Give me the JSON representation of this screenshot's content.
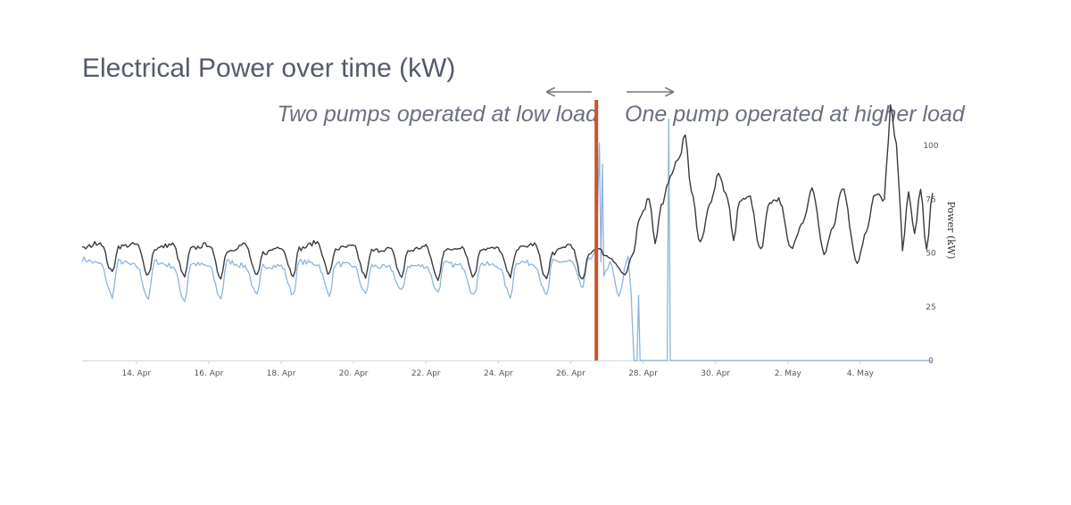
{
  "chart_data": {
    "type": "line",
    "title": "Electrical Power over time (kW)",
    "ylabel": "Power (kW)",
    "xlabel": "",
    "ylim": [
      0,
      120
    ],
    "y_ticks": [
      0,
      25,
      50,
      75,
      100
    ],
    "x_ticks": [
      "14. Apr",
      "16. Apr",
      "18. Apr",
      "20. Apr",
      "22. Apr",
      "24. Apr",
      "26. Apr",
      "28. Apr",
      "30. Apr",
      "2. May",
      "4. May"
    ],
    "x_start": "2024-04-12T12:00",
    "x_end": "2024-05-06T00:00",
    "grid": false,
    "legend": "none",
    "colors": {
      "total": "#3a3a40",
      "pump": "#8db4dd",
      "divider": "#c7552f",
      "axis": "#c9d7e6"
    },
    "annotations": {
      "left": "Two pumps operated at low load",
      "right": "One pump operated at higher load",
      "divider_date": "2024-04-26T17:00"
    },
    "series": [
      {
        "color": "#3a3a40",
        "points": [
          [
            "2024-04-12T12:00",
            52
          ],
          [
            "2024-04-13T00:00",
            55
          ],
          [
            "2024-04-13T08:00",
            41
          ],
          [
            "2024-04-13T12:00",
            53
          ],
          [
            "2024-04-14T00:00",
            54
          ],
          [
            "2024-04-14T08:00",
            40
          ],
          [
            "2024-04-14T12:00",
            52
          ],
          [
            "2024-04-15T00:00",
            54
          ],
          [
            "2024-04-15T08:00",
            39
          ],
          [
            "2024-04-15T12:00",
            52
          ],
          [
            "2024-04-16T00:00",
            54
          ],
          [
            "2024-04-16T08:00",
            39
          ],
          [
            "2024-04-16T12:00",
            51
          ],
          [
            "2024-04-17T00:00",
            54
          ],
          [
            "2024-04-17T08:00",
            39
          ],
          [
            "2024-04-17T12:00",
            50
          ],
          [
            "2024-04-18T00:00",
            53
          ],
          [
            "2024-04-18T08:00",
            40
          ],
          [
            "2024-04-18T12:00",
            52
          ],
          [
            "2024-04-19T00:00",
            55
          ],
          [
            "2024-04-19T08:00",
            40
          ],
          [
            "2024-04-19T12:00",
            52
          ],
          [
            "2024-04-20T00:00",
            53
          ],
          [
            "2024-04-20T08:00",
            39
          ],
          [
            "2024-04-20T12:00",
            51
          ],
          [
            "2024-04-21T00:00",
            52
          ],
          [
            "2024-04-21T08:00",
            39
          ],
          [
            "2024-04-21T12:00",
            51
          ],
          [
            "2024-04-22T00:00",
            53
          ],
          [
            "2024-04-22T08:00",
            38
          ],
          [
            "2024-04-22T12:00",
            51
          ],
          [
            "2024-04-23T00:00",
            53
          ],
          [
            "2024-04-23T08:00",
            39
          ],
          [
            "2024-04-23T12:00",
            52
          ],
          [
            "2024-04-24T00:00",
            52
          ],
          [
            "2024-04-24T08:00",
            39
          ],
          [
            "2024-04-24T12:00",
            52
          ],
          [
            "2024-04-25T00:00",
            54
          ],
          [
            "2024-04-25T08:00",
            38
          ],
          [
            "2024-04-25T12:00",
            50
          ],
          [
            "2024-04-26T00:00",
            54
          ],
          [
            "2024-04-26T08:00",
            37
          ],
          [
            "2024-04-26T12:00",
            50
          ],
          [
            "2024-04-26T17:00",
            52
          ],
          [
            "2024-04-27T02:00",
            48
          ],
          [
            "2024-04-27T12:00",
            40
          ],
          [
            "2024-04-27T18:00",
            50
          ],
          [
            "2024-04-27T21:00",
            65
          ],
          [
            "2024-04-28T00:00",
            70
          ],
          [
            "2024-04-28T04:00",
            76
          ],
          [
            "2024-04-28T08:00",
            55
          ],
          [
            "2024-04-28T12:00",
            72
          ],
          [
            "2024-04-28T18:00",
            85
          ],
          [
            "2024-04-29T00:00",
            95
          ],
          [
            "2024-04-29T04:00",
            105
          ],
          [
            "2024-04-29T08:00",
            78
          ],
          [
            "2024-04-29T14:00",
            55
          ],
          [
            "2024-04-29T20:00",
            72
          ],
          [
            "2024-04-30T02:00",
            86
          ],
          [
            "2024-04-30T08:00",
            76
          ],
          [
            "2024-04-30T12:00",
            56
          ],
          [
            "2024-04-30T16:00",
            74
          ],
          [
            "2024-04-30T22:00",
            77
          ],
          [
            "2024-05-01T06:00",
            52
          ],
          [
            "2024-05-01T12:00",
            74
          ],
          [
            "2024-05-01T18:00",
            75
          ],
          [
            "2024-05-02T02:00",
            52
          ],
          [
            "2024-05-02T10:00",
            65
          ],
          [
            "2024-05-02T16:00",
            80
          ],
          [
            "2024-05-03T00:00",
            50
          ],
          [
            "2024-05-03T06:00",
            62
          ],
          [
            "2024-05-03T12:00",
            80
          ],
          [
            "2024-05-03T22:00",
            45
          ],
          [
            "2024-05-04T04:00",
            60
          ],
          [
            "2024-05-04T10:00",
            78
          ],
          [
            "2024-05-04T16:00",
            75
          ],
          [
            "2024-05-04T20:00",
            118
          ],
          [
            "2024-05-05T00:00",
            100
          ],
          [
            "2024-05-05T04:00",
            52
          ],
          [
            "2024-05-05T08:00",
            78
          ],
          [
            "2024-05-05T12:00",
            60
          ],
          [
            "2024-05-05T16:00",
            80
          ],
          [
            "2024-05-05T20:00",
            52
          ],
          [
            "2024-05-06T00:00",
            78
          ]
        ]
      },
      {
        "color": "#8db4dd",
        "points": [
          [
            "2024-04-12T12:00",
            47
          ],
          [
            "2024-04-13T00:00",
            45
          ],
          [
            "2024-04-13T08:00",
            30
          ],
          [
            "2024-04-13T12:00",
            46
          ],
          [
            "2024-04-14T00:00",
            44
          ],
          [
            "2024-04-14T08:00",
            29
          ],
          [
            "2024-04-14T12:00",
            46
          ],
          [
            "2024-04-15T00:00",
            44
          ],
          [
            "2024-04-15T08:00",
            28
          ],
          [
            "2024-04-15T12:00",
            45
          ],
          [
            "2024-04-16T00:00",
            44
          ],
          [
            "2024-04-16T08:00",
            29
          ],
          [
            "2024-04-16T12:00",
            46
          ],
          [
            "2024-04-17T00:00",
            44
          ],
          [
            "2024-04-17T08:00",
            30
          ],
          [
            "2024-04-17T12:00",
            44
          ],
          [
            "2024-04-18T00:00",
            44
          ],
          [
            "2024-04-18T08:00",
            31
          ],
          [
            "2024-04-18T12:00",
            46
          ],
          [
            "2024-04-19T00:00",
            45
          ],
          [
            "2024-04-19T08:00",
            31
          ],
          [
            "2024-04-19T12:00",
            45
          ],
          [
            "2024-04-20T00:00",
            44
          ],
          [
            "2024-04-20T08:00",
            31
          ],
          [
            "2024-04-20T12:00",
            44
          ],
          [
            "2024-04-21T00:00",
            43
          ],
          [
            "2024-04-21T08:00",
            32
          ],
          [
            "2024-04-21T12:00",
            44
          ],
          [
            "2024-04-22T00:00",
            44
          ],
          [
            "2024-04-22T08:00",
            32
          ],
          [
            "2024-04-22T12:00",
            45
          ],
          [
            "2024-04-23T00:00",
            44
          ],
          [
            "2024-04-23T08:00",
            30
          ],
          [
            "2024-04-23T12:00",
            45
          ],
          [
            "2024-04-24T00:00",
            44
          ],
          [
            "2024-04-24T08:00",
            30
          ],
          [
            "2024-04-24T12:00",
            46
          ],
          [
            "2024-04-25T00:00",
            45
          ],
          [
            "2024-04-25T08:00",
            30
          ],
          [
            "2024-04-25T12:00",
            46
          ],
          [
            "2024-04-26T00:00",
            46
          ],
          [
            "2024-04-26T08:00",
            34
          ],
          [
            "2024-04-26T12:00",
            48
          ],
          [
            "2024-04-26T17:00",
            50
          ],
          [
            "2024-04-26T19:00",
            100
          ],
          [
            "2024-04-26T20:00",
            45
          ],
          [
            "2024-04-26T21:00",
            92
          ],
          [
            "2024-04-26T22:00",
            40
          ],
          [
            "2024-04-27T02:00",
            45
          ],
          [
            "2024-04-27T08:00",
            30
          ],
          [
            "2024-04-27T14:00",
            48
          ],
          [
            "2024-04-27T16:00",
            32
          ],
          [
            "2024-04-27T18:00",
            0
          ],
          [
            "2024-04-27T20:00",
            0
          ],
          [
            "2024-04-27T21:00",
            30
          ],
          [
            "2024-04-27T22:00",
            0
          ],
          [
            "2024-04-28T16:00",
            0
          ],
          [
            "2024-04-28T17:00",
            113
          ],
          [
            "2024-04-28T18:00",
            0
          ],
          [
            "2024-05-06T00:00",
            0
          ]
        ]
      }
    ]
  }
}
